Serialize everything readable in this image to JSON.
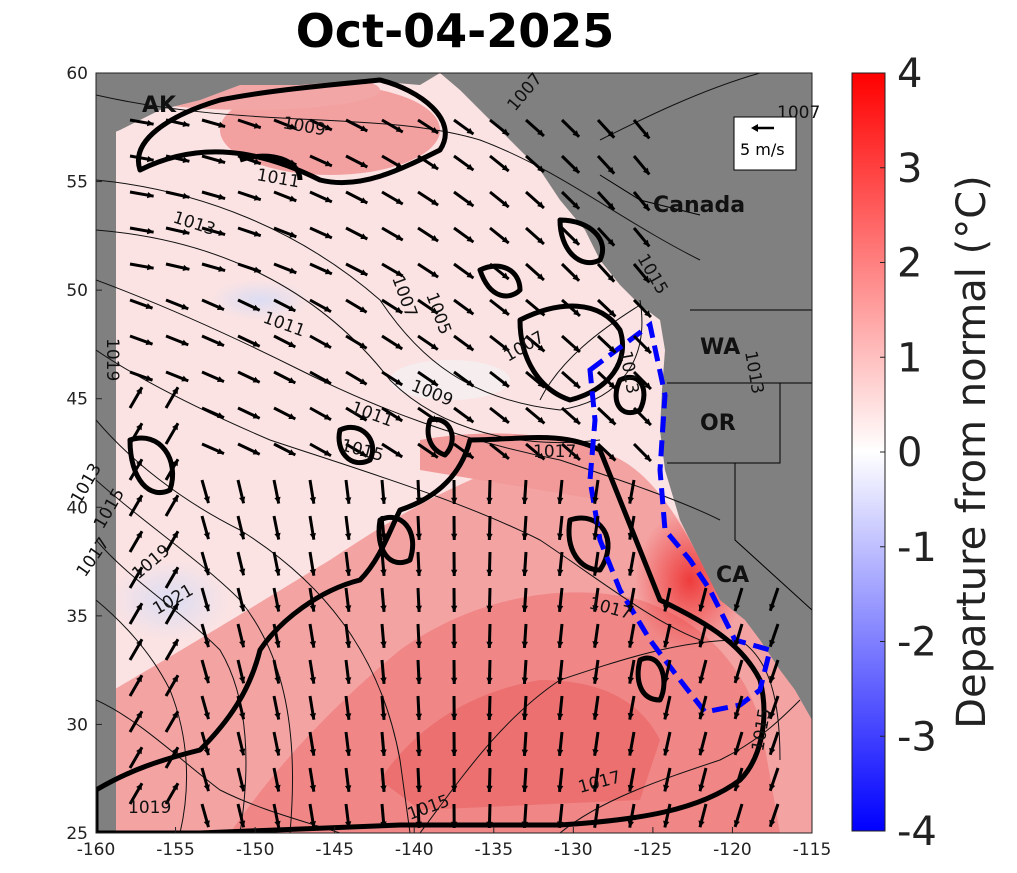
{
  "title": "Oct-04-2025",
  "colorbar": {
    "label": "Departure from normal (°C)",
    "ticks": [
      "4",
      "3",
      "2",
      "1",
      "0",
      "-1",
      "-2",
      "-3",
      "-4"
    ],
    "colors": {
      "max": "#ff0000",
      "mid": "#ffffff",
      "min": "#0000ff"
    }
  },
  "axes": {
    "x_ticks": [
      "-160",
      "-155",
      "-150",
      "-145",
      "-140",
      "-135",
      "-130",
      "-125",
      "-120",
      "-115"
    ],
    "y_ticks": [
      "60",
      "55",
      "50",
      "45",
      "40",
      "35",
      "30",
      "25"
    ],
    "lon_range": [
      -160,
      -115
    ],
    "lat_range": [
      25,
      60
    ]
  },
  "regions": [
    "AK",
    "Canada",
    "WA",
    "OR",
    "CA"
  ],
  "wind_scale_label": "5 m/s",
  "isobars": [
    "1007",
    "1007",
    "1009",
    "1011",
    "1013",
    "1011",
    "1007",
    "1005",
    "1007",
    "1009",
    "1011",
    "1015",
    "1017",
    "1019",
    "1013",
    "1015",
    "1017",
    "1019",
    "1021",
    "1017",
    "1013",
    "1015",
    "1013",
    "1017",
    "1019",
    "1015",
    "1015"
  ],
  "land_color": "#808080",
  "mhw_outline_color": "#000000",
  "region_box_color": "#0000ff"
}
